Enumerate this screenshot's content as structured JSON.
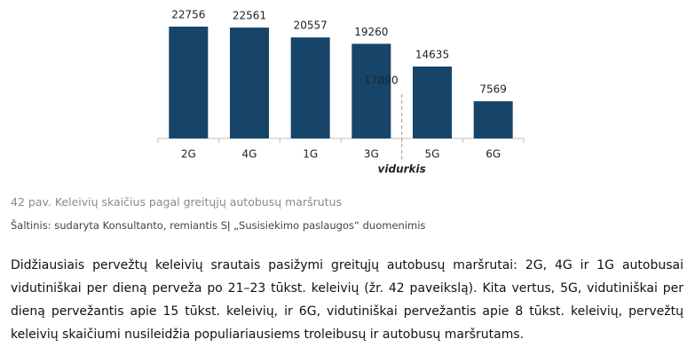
{
  "figure": {
    "chart_data": {
      "type": "bar",
      "categories": [
        "2G",
        "4G",
        "1G",
        "3G",
        "5G",
        "6G"
      ],
      "values": [
        22756,
        22561,
        20557,
        19260,
        14635,
        7569
      ],
      "color": "#17456a",
      "average": 17890,
      "average_label": "vidurkis"
    },
    "caption": "42 pav. Keleivių skaičius pagal greitųjų autobusų maršrutus",
    "source": "Šaltinis: sudaryta Konsultanto, remiantis SĮ „Susisiekimo paslaugos“ duomenimis"
  },
  "paragraph": "Didžiausiais pervežtų keleivių srautais pasižymi greitųjų autobusų maršrutai: 2G, 4G ir 1G autobusai vidutiniškai per dieną perveža po 21–23 tūkst. keleivių (žr. 42 paveikslą). Kita vertus, 5G, vidutiniškai per dieną pervežantis apie 15 tūkst. keleivių, ir 6G, vidutiniškai pervežantis apie 8 tūkst. keleivių, pervežtų keleivių skaičiumi nusileidžia populiariausiems troleibusų ir autobusų maršrutams."
}
